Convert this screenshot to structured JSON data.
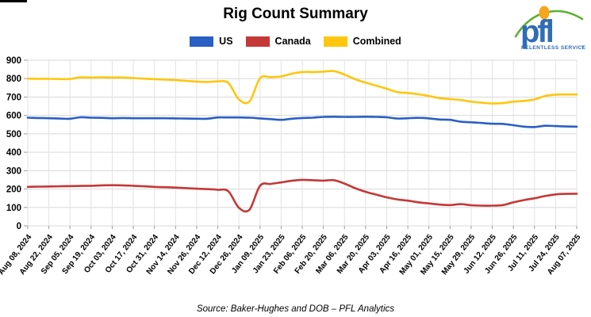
{
  "header": {
    "title": "Rig Count Summary"
  },
  "logo": {
    "text": "pfl",
    "tagline": "RELENTLESS SERVICE",
    "trademark": "™",
    "colors": {
      "blue": "#2f6db6",
      "green": "#5bb12d",
      "orange": "#f6a51c"
    }
  },
  "source": {
    "text": "Source: Baker-Hughes and DOB – PFL Analytics"
  },
  "chart_data": {
    "type": "line",
    "title": "Rig Count Summary",
    "xlabel": "",
    "ylabel": "",
    "ylim": [
      0,
      900
    ],
    "y_ticks": [
      0,
      100,
      200,
      300,
      400,
      500,
      600,
      700,
      800,
      900
    ],
    "grid": true,
    "legend_position": "top",
    "x_tick_labels": [
      "Aug 08, 2024",
      "Aug 22, 2024",
      "Sep 05, 2024",
      "Sep 19, 2024",
      "Oct 03, 2024",
      "Oct 17, 2024",
      "Oct 31, 2024",
      "Nov 14, 2024",
      "Nov 26, 2024",
      "Dec 12, 2024",
      "Dec 26, 2024",
      "Jan 09, 2025",
      "Jan 23, 2025",
      "Feb 06, 2025",
      "Feb 20, 2025",
      "Mar 06, 2025",
      "Mar 20, 2025",
      "Apr 03, 2025",
      "Apr 16, 2025",
      "May 01, 2025",
      "May 15, 2025",
      "May 29, 2025",
      "Jun 12, 2025",
      "Jun 26, 2025",
      "Jul 11, 2025",
      "Jul 24, 2025",
      "Aug 07, 2025"
    ],
    "x": [
      "Aug 08, 2024",
      "Aug 15, 2024",
      "Aug 22, 2024",
      "Aug 29, 2024",
      "Sep 05, 2024",
      "Sep 12, 2024",
      "Sep 19, 2024",
      "Sep 26, 2024",
      "Oct 03, 2024",
      "Oct 10, 2024",
      "Oct 17, 2024",
      "Oct 24, 2024",
      "Oct 31, 2024",
      "Nov 07, 2024",
      "Nov 14, 2024",
      "Nov 21, 2024",
      "Nov 26, 2024",
      "Dec 05, 2024",
      "Dec 12, 2024",
      "Dec 19, 2024",
      "Dec 26, 2024",
      "Jan 02, 2025",
      "Jan 09, 2025",
      "Jan 16, 2025",
      "Jan 23, 2025",
      "Jan 30, 2025",
      "Feb 06, 2025",
      "Feb 13, 2025",
      "Feb 20, 2025",
      "Feb 27, 2025",
      "Mar 06, 2025",
      "Mar 13, 2025",
      "Mar 20, 2025",
      "Mar 27, 2025",
      "Apr 03, 2025",
      "Apr 10, 2025",
      "Apr 16, 2025",
      "Apr 24, 2025",
      "May 01, 2025",
      "May 08, 2025",
      "May 15, 2025",
      "May 22, 2025",
      "May 29, 2025",
      "Jun 05, 2025",
      "Jun 12, 2025",
      "Jun 19, 2025",
      "Jun 26, 2025",
      "Jul 03, 2025",
      "Jul 11, 2025",
      "Jul 17, 2025",
      "Jul 24, 2025",
      "Jul 31, 2025",
      "Aug 07, 2025"
    ],
    "series": [
      {
        "name": "US",
        "color": "#2a5fc4",
        "values": [
          588,
          586,
          585,
          583,
          582,
          590,
          588,
          587,
          585,
          586,
          585,
          585,
          585,
          585,
          584,
          583,
          582,
          582,
          589,
          589,
          589,
          588,
          584,
          580,
          576,
          582,
          586,
          588,
          592,
          593,
          592,
          592,
          593,
          592,
          590,
          583,
          585,
          587,
          584,
          578,
          576,
          566,
          563,
          559,
          555,
          554,
          547,
          539,
          537,
          544,
          542,
          540,
          539
        ]
      },
      {
        "name": "Canada",
        "color": "#c63737",
        "values": [
          212,
          213,
          214,
          215,
          216,
          217,
          218,
          220,
          221,
          220,
          218,
          215,
          212,
          210,
          208,
          205,
          202,
          200,
          196,
          188,
          98,
          88,
          218,
          228,
          236,
          245,
          250,
          248,
          246,
          248,
          230,
          205,
          185,
          170,
          155,
          144,
          137,
          128,
          122,
          116,
          113,
          118,
          112,
          110,
          110,
          113,
          128,
          140,
          150,
          162,
          171,
          174,
          175
        ]
      },
      {
        "name": "Combined",
        "color": "#ffc60d",
        "values": [
          800,
          799,
          799,
          798,
          798,
          807,
          806,
          807,
          806,
          806,
          803,
          800,
          797,
          795,
          792,
          788,
          784,
          782,
          785,
          777,
          687,
          676,
          802,
          808,
          812,
          827,
          836,
          836,
          838,
          841,
          822,
          797,
          778,
          762,
          745,
          727,
          722,
          715,
          706,
          694,
          689,
          684,
          675,
          669,
          665,
          667,
          675,
          679,
          687,
          706,
          713,
          714,
          714
        ]
      }
    ]
  }
}
